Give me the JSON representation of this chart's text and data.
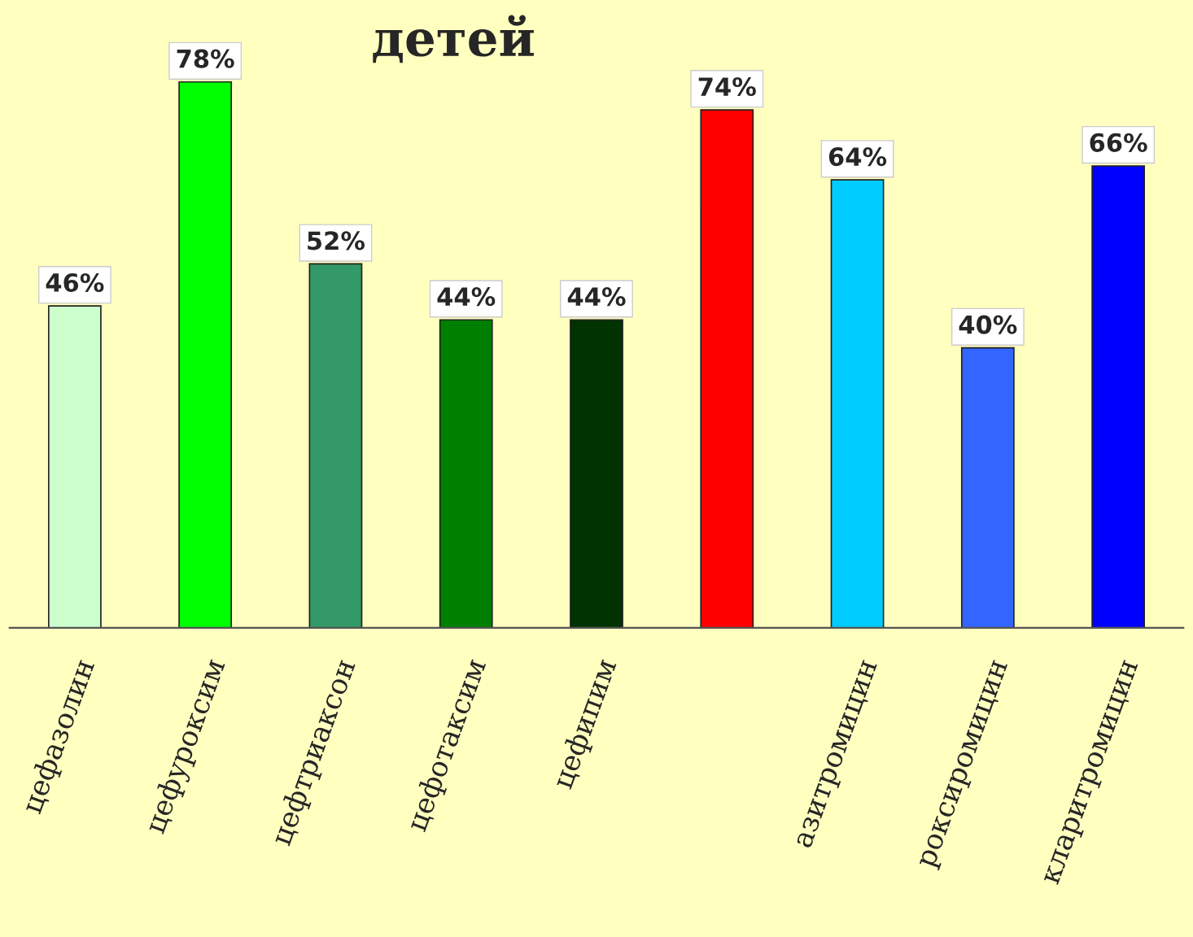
{
  "chart_data": {
    "type": "bar",
    "title": "детей",
    "categories": [
      "цефазолин",
      "цефуроксим",
      "цефтриаксон",
      "цефотаксим",
      "цефипим",
      null,
      "азитромицин",
      "роксиромицин",
      "кларитромицин"
    ],
    "values": [
      46,
      78,
      52,
      44,
      44,
      74,
      64,
      40,
      66
    ],
    "value_labels": [
      "46%",
      "78%",
      "52%",
      "44%",
      "44%",
      "74%",
      "64%",
      "40%",
      "66%"
    ],
    "colors": [
      "#ccffcc",
      "#00ff00",
      "#339966",
      "#008000",
      "#003300",
      "#ff0000",
      "#00ccff",
      "#3366ff",
      "#0000ff"
    ],
    "grid": false,
    "legend": false
  }
}
